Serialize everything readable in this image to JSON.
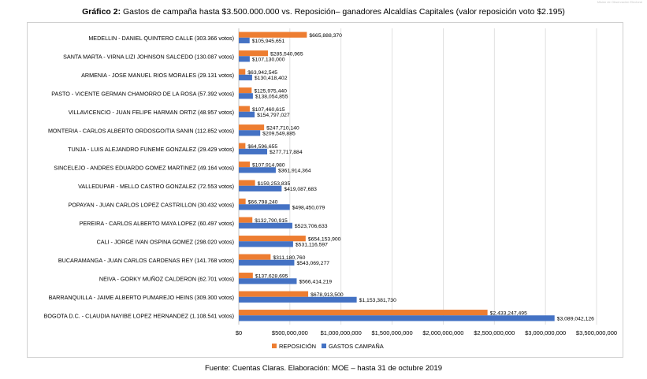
{
  "corner_text": "Misión de Observación Electoral",
  "title": {
    "prefix": "Gráfico 2:",
    "text": " Gastos de campaña hasta $3.500.000.000 vs. Reposición– ganadores Alcaldías Capitales (valor reposición voto $2.195)"
  },
  "source": "Fuente: Cuentas Claras. Elaboración: MOE – hasta 31 de octubre 2019",
  "colors": {
    "reposicion": "#ED7D31",
    "gastos": "#4472C4",
    "grid": "#d9d9d9",
    "text": "#000000"
  },
  "chart_data": {
    "type": "bar",
    "orientation": "horizontal",
    "title": "Gráfico 2: Gastos de campaña hasta $3.500.000.000 vs. Reposición– ganadores Alcaldías Capitales (valor reposición voto $2.195)",
    "categories": [
      "MEDELLIN - DANIEL QUINTERO CALLE (303.366 votos)",
      "SANTA MARTA - VIRNA LIZI JOHNSON SALCEDO (130.087 votos)",
      "ARMENIA - JOSE MANUEL RIOS MORALES (29.131 votos)",
      "PASTO - VICENTE GERMAN CHAMORRO DE LA ROSA (57.392 votos)",
      "VILLAVICENCIO - JUAN FELIPE HARMAN ORTIZ (48.957 votos)",
      "MONTERIA - CARLOS ALBERTO ORDOSGOITIA SANIN (112.852 votos)",
      "TUNJA - LUIS ALEJANDRO FUNEME GONZALEZ (29.429 votos)",
      "SINCELEJO - ANDRES EDUARDO GOMEZ MARTINEZ (49.164 votos)",
      "VALLEDUPAR - MELLO CASTRO GONZALEZ (72.553 votos)",
      "POPAYAN - JUAN CARLOS LOPEZ CASTRILLON (30.432 votos)",
      "PEREIRA - CARLOS ALBERTO MAYA LOPEZ (60.497 votos)",
      "CALI - JORGE IVAN OSPINA GOMEZ (298.020 votos)",
      "BUCARAMANGA - JUAN CARLOS CARDENAS REY (141.768 votos)",
      "NEIVA - GORKY MUÑOZ CALDERON (62.701 votos)",
      "BARRANQUILLA - JAIME ALBERTO PUMAREJO HEINS (309.300 votos)",
      "BOGOTA D.C. - CLAUDIA NAYIBE LOPEZ HERNANDEZ (1.108.541 votos)"
    ],
    "series": [
      {
        "name": "REPOSICIÓN",
        "values": [
          665888370,
          285540965,
          63942545,
          125975440,
          107460615,
          247710140,
          64596655,
          107914980,
          159253835,
          66798240,
          132790915,
          654153900,
          311180760,
          137628695,
          678913500,
          2433247495
        ],
        "labels": [
          "$665,888,370",
          "$285,540,965",
          "$63,942,545",
          "$125,975,440",
          "$107,460,615",
          "$247,710,140",
          "$64,596,655",
          "$107,914,980",
          "$159,253,835",
          "$66,798,240",
          "$132,790,915",
          "$654,153,900",
          "$311,180,760",
          "$137,628,695",
          "$678,913,500",
          "$2,433,247,495"
        ]
      },
      {
        "name": "GASTOS CAMPAÑA",
        "values": [
          105945651,
          107130000,
          130418402,
          138054855,
          154797027,
          209549885,
          277717884,
          361914364,
          419087683,
          498450079,
          523706633,
          531116597,
          543069277,
          566414219,
          1153381730,
          3089042126
        ],
        "labels": [
          "$105,945,651",
          "$107,130,000",
          "$130,418,402",
          "$138,054,855",
          "$154,797,027",
          "$209,549,885",
          "$277,717,884",
          "$361,914,364",
          "$419,087,683",
          "$498,450,079",
          "$523,706,633",
          "$531,116,597",
          "$543,069,277",
          "$566,414,219",
          "$1,153,381,730",
          "$3,089,042,126"
        ]
      }
    ],
    "xlim": [
      0,
      3500000000
    ],
    "xticks": [
      "$0",
      "$500,000,000",
      "$1,000,000,000",
      "$1,500,000,000",
      "$2,000,000,000",
      "$2,500,000,000",
      "$3,000,000,000",
      "$3,500,000,000"
    ],
    "xlabel": "",
    "ylabel": "",
    "grid": true,
    "legend": "bottom"
  }
}
